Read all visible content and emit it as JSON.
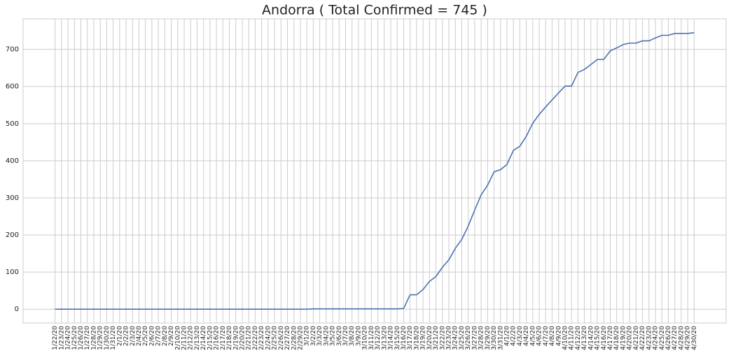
{
  "chart_data": {
    "type": "line",
    "title": "Andorra ( Total Confirmed = 745 )",
    "categories": [
      "1/22/20",
      "1/23/20",
      "1/24/20",
      "1/25/20",
      "1/26/20",
      "1/27/20",
      "1/28/20",
      "1/29/20",
      "1/30/20",
      "1/31/20",
      "2/1/20",
      "2/2/20",
      "2/3/20",
      "2/4/20",
      "2/5/20",
      "2/6/20",
      "2/7/20",
      "2/8/20",
      "2/9/20",
      "2/10/20",
      "2/11/20",
      "2/12/20",
      "2/13/20",
      "2/14/20",
      "2/15/20",
      "2/16/20",
      "2/17/20",
      "2/18/20",
      "2/19/20",
      "2/20/20",
      "2/21/20",
      "2/22/20",
      "2/23/20",
      "2/24/20",
      "2/25/20",
      "2/26/20",
      "2/27/20",
      "2/28/20",
      "2/29/20",
      "3/1/20",
      "3/2/20",
      "3/3/20",
      "3/4/20",
      "3/5/20",
      "3/6/20",
      "3/7/20",
      "3/8/20",
      "3/9/20",
      "3/10/20",
      "3/11/20",
      "3/12/20",
      "3/13/20",
      "3/14/20",
      "3/15/20",
      "3/16/20",
      "3/17/20",
      "3/18/20",
      "3/19/20",
      "3/20/20",
      "3/21/20",
      "3/22/20",
      "3/23/20",
      "3/24/20",
      "3/25/20",
      "3/26/20",
      "3/27/20",
      "3/28/20",
      "3/29/20",
      "3/30/20",
      "3/31/20",
      "4/1/20",
      "4/2/20",
      "4/3/20",
      "4/4/20",
      "4/5/20",
      "4/6/20",
      "4/7/20",
      "4/8/20",
      "4/9/20",
      "4/10/20",
      "4/11/20",
      "4/12/20",
      "4/13/20",
      "4/14/20",
      "4/15/20",
      "4/16/20",
      "4/17/20",
      "4/18/20",
      "4/19/20",
      "4/20/20",
      "4/21/20",
      "4/22/20",
      "4/23/20",
      "4/24/20",
      "4/25/20",
      "4/26/20",
      "4/27/20",
      "4/28/20",
      "4/29/20",
      "4/30/20"
    ],
    "values": [
      0,
      0,
      0,
      0,
      0,
      0,
      0,
      0,
      0,
      0,
      0,
      0,
      0,
      0,
      0,
      0,
      0,
      0,
      0,
      0,
      0,
      0,
      0,
      0,
      0,
      0,
      0,
      0,
      0,
      0,
      0,
      0,
      0,
      0,
      0,
      0,
      0,
      0,
      0,
      0,
      1,
      1,
      1,
      1,
      1,
      1,
      1,
      1,
      1,
      1,
      1,
      1,
      1,
      1,
      2,
      39,
      39,
      53,
      75,
      88,
      113,
      133,
      164,
      188,
      224,
      267,
      308,
      334,
      370,
      376,
      390,
      428,
      439,
      466,
      501,
      525,
      545,
      564,
      583,
      601,
      601,
      638,
      646,
      659,
      673,
      673,
      696,
      704,
      713,
      717,
      717,
      723,
      723,
      731,
      738,
      738,
      743,
      743,
      743,
      745
    ],
    "color": "#4c72b0",
    "xlim": [
      -4.95,
      103.95
    ],
    "ylim": [
      -37.25,
      782.25
    ],
    "yticks": [
      0,
      100,
      200,
      300,
      400,
      500,
      600,
      700
    ],
    "grid": true
  }
}
